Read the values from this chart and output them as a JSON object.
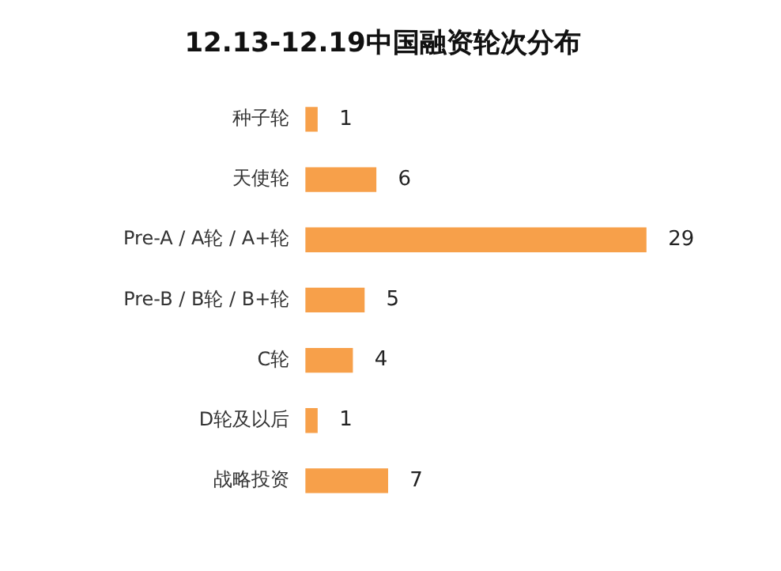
{
  "chart_data": {
    "type": "bar",
    "title": "12.13-12.19中国融资轮次分布",
    "orientation": "horizontal",
    "categories": [
      "种子轮",
      "天使轮",
      "Pre-A / A轮 / A+轮",
      "Pre-B / B轮 / B+轮",
      "C轮",
      "D轮及以后",
      "战略投资"
    ],
    "values": [
      1,
      6,
      29,
      5,
      4,
      1,
      7
    ],
    "color": "#f7a04a",
    "data_labels": true
  }
}
